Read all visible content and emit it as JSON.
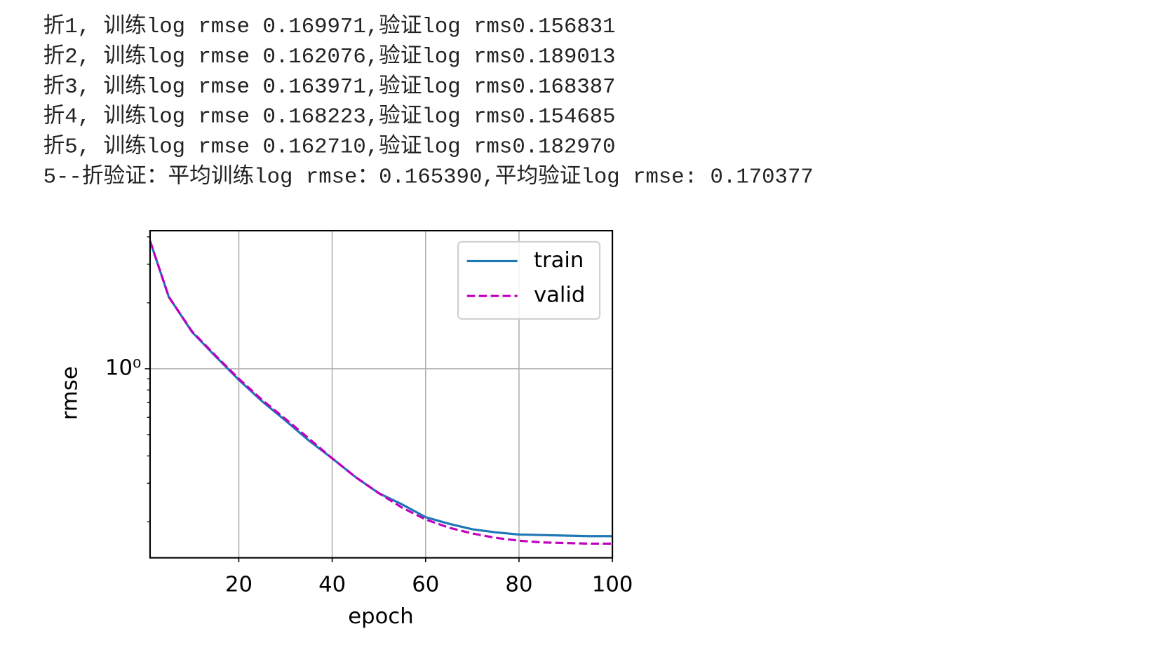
{
  "log_lines": [
    "折1, 训练log rmse 0.169971,验证log rms0.156831",
    "折2, 训练log rmse 0.162076,验证log rms0.189013",
    "折3, 训练log rmse 0.163971,验证log rms0.168387",
    "折4, 训练log rmse 0.168223,验证log rms0.154685",
    "折5, 训练log rmse 0.162710,验证log rms0.182970",
    "5--折验证：平均训练log rmse：0.165390,平均验证log rmse: 0.170377"
  ],
  "chart_data": {
    "type": "line",
    "x_label": "epoch",
    "y_label": "rmse",
    "x": [
      1,
      5,
      10,
      15,
      20,
      25,
      30,
      35,
      40,
      45,
      50,
      55,
      60,
      65,
      70,
      75,
      80,
      85,
      90,
      95,
      100
    ],
    "series": [
      {
        "name": "train",
        "color": "#1f77b4",
        "dash": false,
        "values": [
          3.83,
          2.13,
          1.47,
          1.14,
          0.89,
          0.71,
          0.58,
          0.47,
          0.39,
          0.32,
          0.27,
          0.24,
          0.21,
          0.196,
          0.185,
          0.179,
          0.175,
          0.174,
          0.173,
          0.172,
          0.172
        ]
      },
      {
        "name": "valid",
        "color": "#bf00bf",
        "dash": true,
        "values": [
          3.83,
          2.13,
          1.48,
          1.15,
          0.9,
          0.72,
          0.59,
          0.48,
          0.39,
          0.32,
          0.27,
          0.232,
          0.205,
          0.188,
          0.177,
          0.169,
          0.164,
          0.161,
          0.16,
          0.159,
          0.159
        ]
      }
    ],
    "xlim": [
      1,
      100
    ],
    "xticks": [
      20,
      40,
      60,
      80,
      100
    ],
    "ylim": [
      0.137,
      4.27
    ],
    "yscale": "log",
    "yticks": [
      {
        "value": 1,
        "label": "10⁰"
      }
    ],
    "y_minor_ticks": [
      0.2,
      0.3,
      0.4,
      0.5,
      0.6,
      0.7,
      0.8,
      0.9,
      2,
      3,
      4
    ],
    "grid": true,
    "legend": "upper right"
  }
}
